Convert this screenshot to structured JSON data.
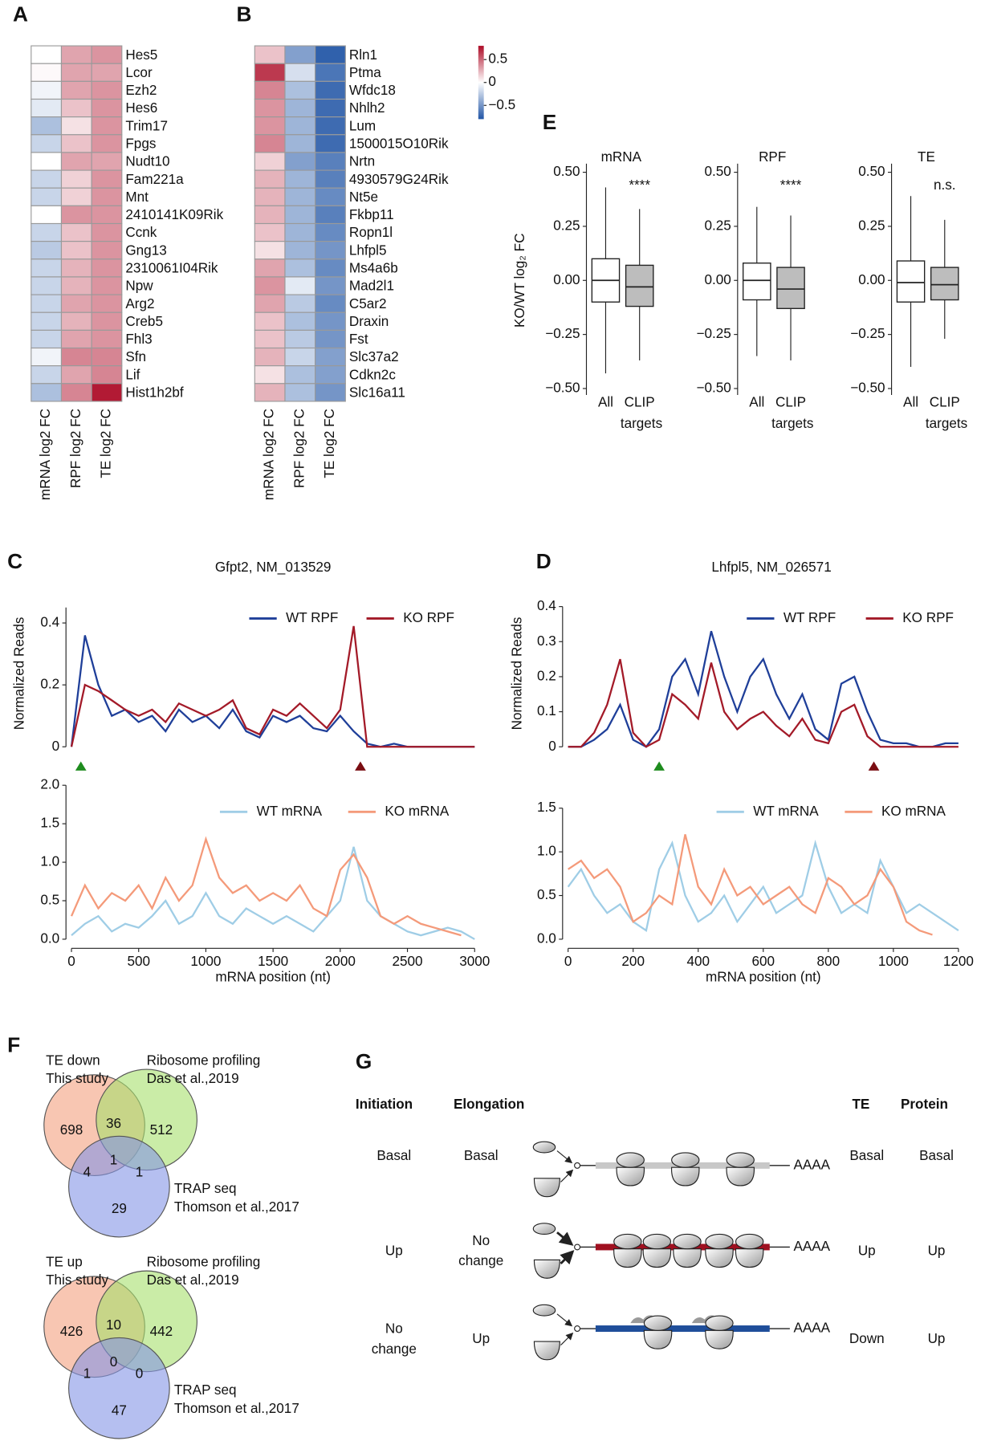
{
  "chart_data": [
    {
      "type": "heatmap",
      "panel": "A",
      "rows": [
        "Hes5",
        "Lcor",
        "Ezh2",
        "Hes6",
        "Trim17",
        "Fpgs",
        "Nudt10",
        "Fam221a",
        "Mnt",
        "2410141K09Rik",
        "Ccnk",
        "Gng13",
        "2310061I04Rik",
        "Npw",
        "Arg2",
        "Creb5",
        "Fhl3",
        "Sfn",
        "Lif",
        "Hist1h2bf"
      ],
      "columns": [
        "mRNA log2 FC",
        "RPF log2 FC",
        "TE log2 FC"
      ],
      "values": [
        [
          0,
          0.3,
          0.35
        ],
        [
          0.02,
          0.3,
          0.3
        ],
        [
          -0.05,
          0.3,
          0.35
        ],
        [
          -0.1,
          0.2,
          0.35
        ],
        [
          -0.3,
          0.1,
          0.35
        ],
        [
          -0.2,
          0.2,
          0.35
        ],
        [
          0,
          0.3,
          0.3
        ],
        [
          -0.2,
          0.15,
          0.35
        ],
        [
          -0.2,
          0.15,
          0.35
        ],
        [
          0,
          0.35,
          0.35
        ],
        [
          -0.2,
          0.2,
          0.35
        ],
        [
          -0.25,
          0.2,
          0.35
        ],
        [
          -0.2,
          0.25,
          0.35
        ],
        [
          -0.2,
          0.25,
          0.35
        ],
        [
          -0.2,
          0.3,
          0.35
        ],
        [
          -0.2,
          0.25,
          0.35
        ],
        [
          -0.2,
          0.3,
          0.35
        ],
        [
          -0.05,
          0.4,
          0.4
        ],
        [
          -0.2,
          0.3,
          0.4
        ],
        [
          -0.3,
          0.4,
          0.75
        ]
      ],
      "clim": [
        -0.8,
        0.8
      ],
      "colors": [
        "#2256a6",
        "#ffffff",
        "#ad0b26"
      ]
    },
    {
      "type": "heatmap",
      "panel": "B",
      "rows": [
        "Rln1",
        "Ptma",
        "Wfdc18",
        "Nhlh2",
        "Lum",
        "1500015O10Rik",
        "Nrtn",
        "4930579G24Rik",
        "Nt5e",
        "Fkbp11",
        "Ropn1l",
        "Lhfpl5",
        "Ms4a6b",
        "Mad2l1",
        "C5ar2",
        "Draxin",
        "Fst",
        "Slc37a2",
        "Cdkn2c",
        "Slc16a11"
      ],
      "columns": [
        "mRNA log2 FC",
        "RPF log2 FC",
        "TE log2 FC"
      ],
      "values": [
        [
          0.2,
          -0.45,
          -0.75
        ],
        [
          0.65,
          -0.15,
          -0.65
        ],
        [
          0.4,
          -0.3,
          -0.7
        ],
        [
          0.35,
          -0.35,
          -0.7
        ],
        [
          0.35,
          -0.35,
          -0.7
        ],
        [
          0.4,
          -0.35,
          -0.7
        ],
        [
          0.15,
          -0.45,
          -0.6
        ],
        [
          0.25,
          -0.35,
          -0.6
        ],
        [
          0.25,
          -0.35,
          -0.55
        ],
        [
          0.25,
          -0.35,
          -0.6
        ],
        [
          0.2,
          -0.35,
          -0.55
        ],
        [
          0.1,
          -0.35,
          -0.5
        ],
        [
          0.3,
          -0.3,
          -0.55
        ],
        [
          0.35,
          -0.1,
          -0.5
        ],
        [
          0.3,
          -0.25,
          -0.55
        ],
        [
          0.2,
          -0.3,
          -0.5
        ],
        [
          0.2,
          -0.25,
          -0.5
        ],
        [
          0.25,
          -0.2,
          -0.45
        ],
        [
          0.1,
          -0.3,
          -0.45
        ],
        [
          0.25,
          -0.3,
          -0.5
        ]
      ],
      "clim": [
        -0.8,
        0.8
      ],
      "colors": [
        "#2256a6",
        "#ffffff",
        "#ad0b26"
      ],
      "colorbar_ticks": [
        0.5,
        0,
        {
          "value": -0.5,
          "label": "−0.5"
        }
      ]
    },
    {
      "type": "box",
      "panel": "E",
      "ylabel": "KO/WT log₂ FC",
      "ylim": [
        -0.53,
        0.54
      ],
      "yticks": [
        {
          "value": 0.5,
          "label": "0.50"
        },
        0.25,
        {
          "value": 0,
          "label": "0.00"
        },
        {
          "value": -0.25,
          "label": "−0.25"
        },
        {
          "value": -0.5,
          "label": "−0.50"
        }
      ],
      "categories": [
        [
          "All"
        ],
        [
          "CLIP",
          "targets"
        ]
      ],
      "colors": [
        "#ffffff",
        "#bdbdbd"
      ],
      "groups": [
        {
          "title": "mRNA",
          "annotation": "****",
          "stats": [
            [
              -0.43,
              -0.1,
              0,
              0.1,
              0.43
            ],
            [
              -0.37,
              -0.12,
              -0.03,
              0.07,
              0.33
            ]
          ]
        },
        {
          "title": "RPF",
          "annotation": "****",
          "stats": [
            [
              -0.35,
              -0.09,
              0,
              0.08,
              0.34
            ],
            [
              -0.37,
              -0.13,
              -0.04,
              0.06,
              0.3
            ]
          ]
        },
        {
          "title": "TE",
          "annotation": "n.s.",
          "stats": [
            [
              -0.4,
              -0.1,
              -0.01,
              0.09,
              0.39
            ],
            [
              -0.27,
              -0.09,
              -0.02,
              0.06,
              0.28
            ]
          ]
        }
      ]
    },
    {
      "type": "line",
      "panel": "C",
      "title": "Gfpt2, NM_013529",
      "ylabel": "Normalized Reads",
      "x": [
        0,
        100,
        200,
        300,
        400,
        500,
        600,
        700,
        800,
        900,
        1000,
        1100,
        1200,
        1300,
        1400,
        1500,
        1600,
        1700,
        1800,
        1900,
        2000,
        2100,
        2200,
        2300,
        2400,
        2500,
        2600,
        2700,
        2800,
        2900,
        3000
      ],
      "series": [
        {
          "name": "WT RPF",
          "color": "#1f3f99",
          "values": [
            0,
            0.36,
            0.2,
            0.1,
            0.12,
            0.08,
            0.1,
            0.05,
            0.12,
            0.08,
            0.1,
            0.06,
            0.12,
            0.05,
            0.03,
            0.1,
            0.08,
            0.1,
            0.06,
            0.05,
            0.1,
            0.05,
            0.01,
            0,
            0.01,
            0,
            0,
            0,
            0,
            0,
            0
          ]
        },
        {
          "name": "KO RPF",
          "color": "#a31a28",
          "values": [
            0,
            0.2,
            0.18,
            0.15,
            0.12,
            0.1,
            0.12,
            0.08,
            0.14,
            0.12,
            0.1,
            0.12,
            0.15,
            0.06,
            0.04,
            0.12,
            0.1,
            0.14,
            0.1,
            0.06,
            0.12,
            0.39,
            0,
            0,
            0,
            0,
            0,
            0,
            0,
            0,
            0
          ]
        }
      ],
      "xlim": [
        0,
        3000
      ],
      "ylim": [
        0,
        0.45
      ],
      "yticks": [
        0,
        0.2,
        0.4
      ],
      "markers": [
        {
          "x": 70,
          "color": "#1e8c1e"
        },
        {
          "x": 2150,
          "color": "#7a0d12"
        }
      ]
    },
    {
      "type": "line",
      "xlabel": "mRNA position (nt)",
      "x": [
        0,
        100,
        200,
        300,
        400,
        500,
        600,
        700,
        800,
        900,
        1000,
        1100,
        1200,
        1300,
        1400,
        1500,
        1600,
        1700,
        1800,
        1900,
        2000,
        2100,
        2200,
        2300,
        2400,
        2500,
        2600,
        2700,
        2800,
        2900,
        3000
      ],
      "series": [
        {
          "name": "WT mRNA",
          "color": "#9fcde6",
          "values": [
            0.05,
            0.2,
            0.3,
            0.1,
            0.2,
            0.15,
            0.3,
            0.5,
            0.2,
            0.3,
            0.6,
            0.3,
            0.2,
            0.4,
            0.3,
            0.2,
            0.3,
            0.2,
            0.1,
            0.3,
            0.5,
            1.2,
            0.5,
            0.3,
            0.2,
            0.1,
            0.05,
            0.1,
            0.15,
            0.1,
            0
          ]
        },
        {
          "name": "KO mRNA",
          "color": "#f49a7a",
          "values": [
            0.3,
            0.7,
            0.4,
            0.6,
            0.5,
            0.7,
            0.4,
            0.8,
            0.5,
            0.7,
            1.3,
            0.8,
            0.6,
            0.7,
            0.5,
            0.6,
            0.5,
            0.7,
            0.4,
            0.3,
            0.9,
            1.1,
            0.8,
            0.3,
            0.2,
            0.3,
            0.2,
            0.15,
            0.1,
            0.05,
            null
          ]
        }
      ],
      "xlim": [
        0,
        3000
      ],
      "xticks": [
        0,
        500,
        1000,
        1500,
        2000,
        2500,
        3000
      ],
      "ylim": [
        0,
        2.0
      ],
      "yticks": [
        {
          "value": 0,
          "label": "0.0"
        },
        0.5,
        {
          "value": 1,
          "label": "1.0"
        },
        1.5,
        {
          "value": 2,
          "label": "2.0"
        }
      ]
    },
    {
      "type": "line",
      "panel": "D",
      "title": "Lhfpl5, NM_026571",
      "ylabel": "Normalized Reads",
      "x": [
        0,
        40,
        80,
        120,
        160,
        200,
        240,
        280,
        320,
        360,
        400,
        440,
        480,
        520,
        560,
        600,
        640,
        680,
        720,
        760,
        800,
        840,
        880,
        920,
        960,
        1000,
        1040,
        1080,
        1120,
        1160,
        1200
      ],
      "series": [
        {
          "name": "WT RPF",
          "color": "#1f3f99",
          "values": [
            0,
            0,
            0.02,
            0.05,
            0.12,
            0.02,
            0,
            0.05,
            0.2,
            0.25,
            0.15,
            0.33,
            0.2,
            0.1,
            0.2,
            0.25,
            0.15,
            0.08,
            0.15,
            0.05,
            0.02,
            0.18,
            0.2,
            0.1,
            0.02,
            0.01,
            0.01,
            0,
            0,
            0.01,
            0.01
          ]
        },
        {
          "name": "KO RPF",
          "color": "#a31a28",
          "values": [
            0,
            0,
            0.04,
            0.12,
            0.25,
            0.04,
            0,
            0.02,
            0.15,
            0.12,
            0.08,
            0.24,
            0.1,
            0.05,
            0.08,
            0.1,
            0.06,
            0.03,
            0.08,
            0.02,
            0.01,
            0.1,
            0.12,
            0.03,
            0,
            0,
            0,
            0,
            0,
            0,
            0
          ]
        }
      ],
      "xlim": [
        0,
        1200
      ],
      "ylim": [
        0,
        0.4
      ],
      "yticks": [
        0,
        0.1,
        0.2,
        0.3,
        0.4
      ],
      "markers": [
        {
          "x": 280,
          "color": "#1e8c1e"
        },
        {
          "x": 940,
          "color": "#7a0d12"
        }
      ]
    },
    {
      "type": "line",
      "xlabel": "mRNA position (nt)",
      "x": [
        0,
        40,
        80,
        120,
        160,
        200,
        240,
        280,
        320,
        360,
        400,
        440,
        480,
        520,
        560,
        600,
        640,
        680,
        720,
        760,
        800,
        840,
        880,
        920,
        960,
        1000,
        1040,
        1080,
        1120,
        1160,
        1200
      ],
      "series": [
        {
          "name": "WT mRNA",
          "color": "#9fcde6",
          "values": [
            0.6,
            0.8,
            0.5,
            0.3,
            0.4,
            0.2,
            0.1,
            0.8,
            1.1,
            0.5,
            0.2,
            0.3,
            0.5,
            0.2,
            0.4,
            0.6,
            0.3,
            0.4,
            0.5,
            1.1,
            0.6,
            0.3,
            0.4,
            0.3,
            0.9,
            0.6,
            0.3,
            0.4,
            0.3,
            0.2,
            0.1
          ]
        },
        {
          "name": "KO mRNA",
          "color": "#f49a7a",
          "values": [
            0.8,
            0.9,
            0.7,
            0.8,
            0.6,
            0.2,
            0.3,
            0.5,
            0.4,
            1.2,
            0.6,
            0.4,
            0.8,
            0.5,
            0.6,
            0.4,
            0.5,
            0.6,
            0.4,
            0.3,
            0.7,
            0.6,
            0.4,
            0.5,
            0.8,
            0.6,
            0.2,
            0.1,
            0.05,
            null,
            null
          ]
        }
      ],
      "xlim": [
        0,
        1200
      ],
      "xticks": [
        0,
        200,
        400,
        600,
        800,
        1000,
        1200
      ],
      "ylim": [
        0,
        1.5
      ],
      "yticks": [
        {
          "value": 0,
          "label": "0.0"
        },
        0.5,
        {
          "value": 1,
          "label": "1.0"
        },
        1.5
      ]
    }
  ],
  "venn": {
    "panel": "F",
    "diagrams": [
      {
        "sets": [
          {
            "label": [
              "TE down",
              "This study"
            ],
            "color": "#f4a07e"
          },
          {
            "label": [
              "Ribosome profiling",
              "Das et al.,2019"
            ],
            "color": "#a6e06c"
          },
          {
            "label": [
              "TRAP seq",
              "Thomson et al.,2017"
            ],
            "color": "#8394e6"
          }
        ],
        "counts": [
          698,
          36,
          512,
          1,
          4,
          1,
          29
        ]
      },
      {
        "sets": [
          {
            "label": [
              "TE up",
              "This study"
            ],
            "color": "#f4a07e"
          },
          {
            "label": [
              "Ribosome profiling",
              "Das et al.,2019"
            ],
            "color": "#a6e06c"
          },
          {
            "label": [
              "TRAP seq",
              "Thomson et al.,2017"
            ],
            "color": "#8394e6"
          }
        ],
        "counts": [
          426,
          10,
          442,
          0,
          1,
          0,
          47
        ]
      }
    ]
  },
  "schematic": {
    "panel": "G",
    "headers": [
      "Initiation",
      "Elongation",
      "TE",
      "Protein"
    ],
    "poly_a": "AAAA",
    "rows": [
      {
        "cells": [
          [
            "Basal"
          ],
          [
            "Basal"
          ],
          [
            "Basal"
          ],
          [
            "Basal"
          ]
        ],
        "color": "#c8c8c8"
      },
      {
        "cells": [
          [
            "Up"
          ],
          [
            "No",
            "change"
          ],
          [
            "Up"
          ],
          [
            "Up"
          ]
        ],
        "color": "#a01020"
      },
      {
        "cells": [
          [
            "No",
            "change"
          ],
          [
            "Up"
          ],
          [
            "Down"
          ],
          [
            "Up"
          ]
        ],
        "color": "#1f4e9a"
      }
    ]
  }
}
